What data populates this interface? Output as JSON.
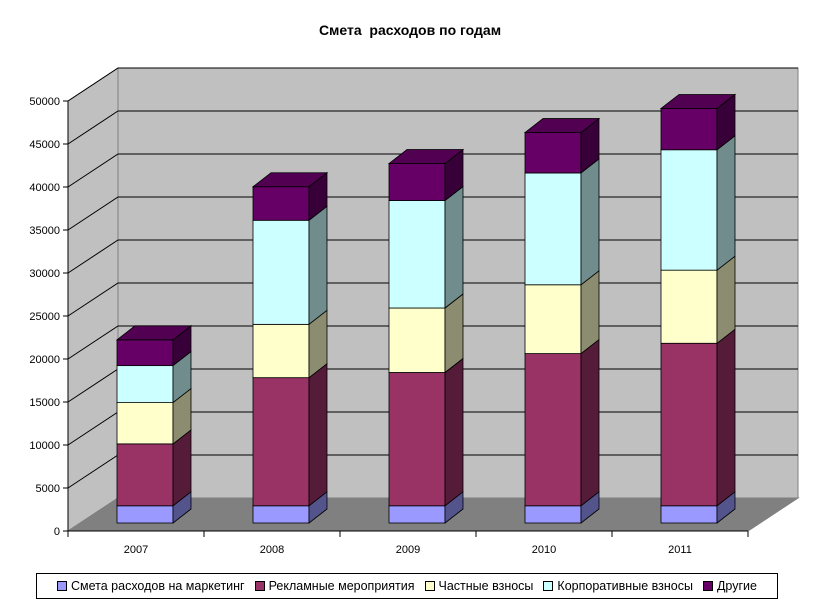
{
  "chart_data": {
    "type": "bar",
    "stacked": true,
    "three_d": true,
    "title": "Смета  расходов по годам",
    "categories": [
      "2007",
      "2008",
      "2009",
      "2010",
      "2011"
    ],
    "ylim": [
      0,
      50000
    ],
    "yticks": [
      0,
      5000,
      10000,
      15000,
      20000,
      25000,
      30000,
      35000,
      40000,
      45000,
      50000
    ],
    "grid": true,
    "legend_position": "bottom",
    "series": [
      {
        "name": "Смета расходов на маркетинг",
        "color": "#9999ff",
        "values": [
          2000,
          2000,
          2000,
          2000,
          2000
        ]
      },
      {
        "name": "Рекламные мероприятия",
        "color": "#993366",
        "values": [
          7200,
          14900,
          15500,
          17700,
          18900
        ]
      },
      {
        "name": "Частные взносы",
        "color": "#ffffcc",
        "values": [
          4800,
          6200,
          7500,
          8000,
          8500
        ]
      },
      {
        "name": "Корпоративные взносы",
        "color": "#ccffff",
        "values": [
          4300,
          12100,
          12500,
          13000,
          14000
        ]
      },
      {
        "name": "Другие",
        "color": "#660066",
        "values": [
          3000,
          3900,
          4300,
          4700,
          4800
        ]
      }
    ]
  }
}
